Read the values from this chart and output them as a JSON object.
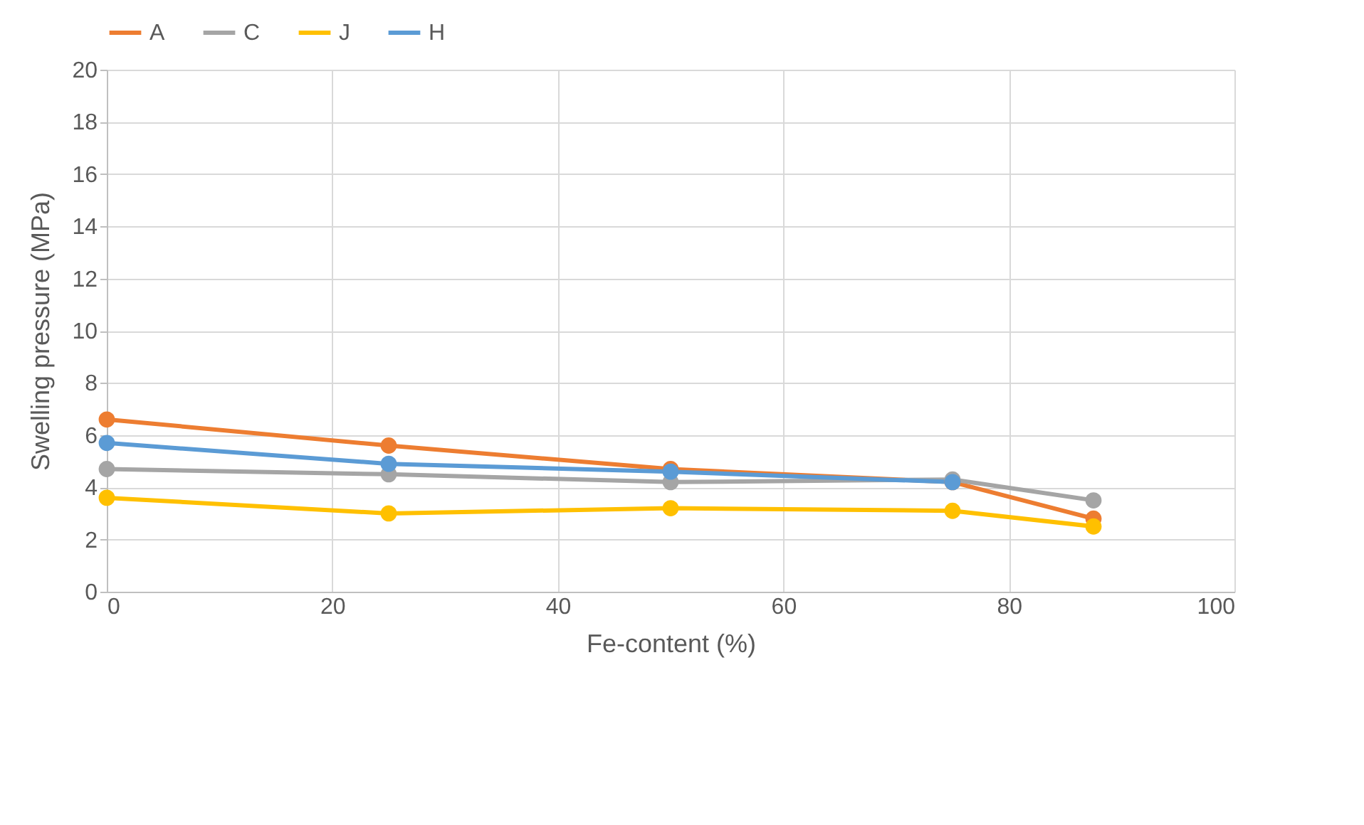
{
  "chart_data": {
    "type": "line",
    "xlabel": "Fe-content (%)",
    "ylabel": "Swelling pressure (MPa)",
    "x": [
      0,
      25,
      50,
      75,
      87.5
    ],
    "series": [
      {
        "name": "A",
        "color": "#ed7d31",
        "values": [
          6.6,
          5.6,
          4.7,
          4.2,
          2.8
        ]
      },
      {
        "name": "C",
        "color": "#a5a5a5",
        "values": [
          4.7,
          4.5,
          4.2,
          4.3,
          3.5
        ]
      },
      {
        "name": "J",
        "color": "#ffc000",
        "values": [
          3.6,
          3.0,
          3.2,
          3.1,
          2.5
        ]
      },
      {
        "name": "H",
        "color": "#5b9bd5",
        "values": [
          5.7,
          4.9,
          4.6,
          4.2,
          null
        ]
      }
    ],
    "xlim": [
      0,
      100
    ],
    "xticks": [
      0,
      20,
      40,
      60,
      80,
      100
    ],
    "ylim": [
      0,
      20
    ],
    "yticks": [
      0,
      2,
      4,
      6,
      8,
      10,
      12,
      14,
      16,
      18,
      20
    ],
    "grid": true,
    "legend": "top",
    "marker": "circle",
    "line_style": "solid"
  }
}
